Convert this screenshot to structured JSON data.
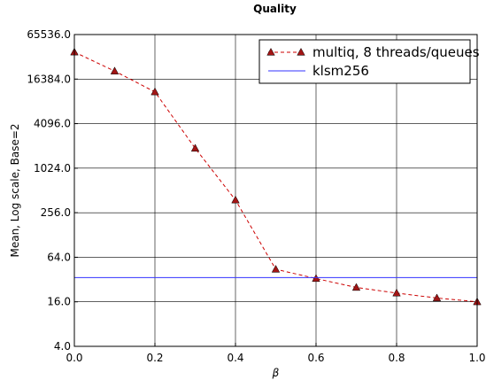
{
  "chart_data": {
    "type": "line",
    "title": "Quality",
    "xlabel": "β",
    "ylabel": "Mean, Log scale, Base=2",
    "xlim": [
      0.0,
      1.0
    ],
    "ylim": [
      4.0,
      65536.0
    ],
    "yscale": "log2",
    "grid": true,
    "legend_position": "top-right",
    "x_ticks": [
      "0.0",
      "0.2",
      "0.4",
      "0.6",
      "0.8",
      "1.0"
    ],
    "y_ticks": [
      "4.0",
      "16.0",
      "64.0",
      "256.0",
      "1024.0",
      "4096.0",
      "16384.0",
      "65536.0"
    ],
    "series": [
      {
        "name": "multiq, 8 threads/queues",
        "color": "#cc0000",
        "marker_color": "#a31515",
        "style": "dashed",
        "marker": "triangle",
        "x": [
          0.0,
          0.1,
          0.2,
          0.3,
          0.4,
          0.5,
          0.6,
          0.7,
          0.8,
          0.9,
          1.0
        ],
        "y": [
          38000,
          21000,
          11000,
          1900,
          380,
          44,
          33,
          25,
          21,
          18,
          16
        ]
      },
      {
        "name": "klsm256",
        "color": "#3333ff",
        "style": "solid",
        "marker": "none",
        "x": [
          0.0,
          1.0
        ],
        "y": [
          34,
          34
        ]
      }
    ]
  }
}
